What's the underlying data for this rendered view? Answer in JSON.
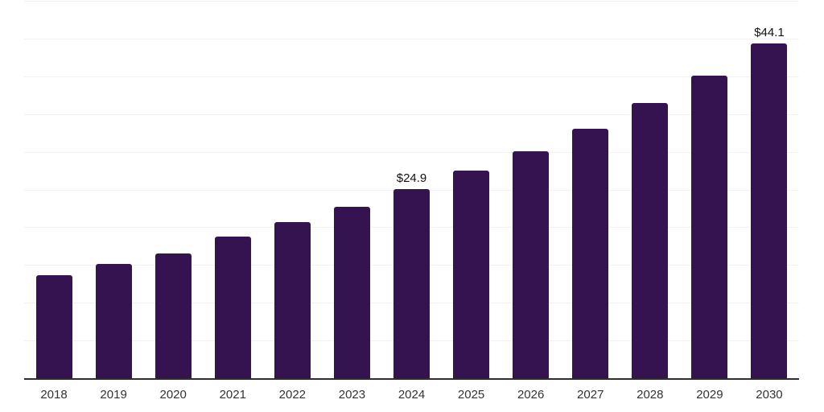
{
  "chart_data": {
    "type": "bar",
    "title": "",
    "xlabel": "",
    "ylabel": "",
    "categories": [
      "2018",
      "2019",
      "2020",
      "2021",
      "2022",
      "2023",
      "2024",
      "2025",
      "2026",
      "2027",
      "2028",
      "2029",
      "2030"
    ],
    "values": [
      13.6,
      15.0,
      16.4,
      18.7,
      20.6,
      22.6,
      24.9,
      27.3,
      29.9,
      32.9,
      36.2,
      39.8,
      44.1
    ],
    "value_labels": {
      "2024": "$24.9",
      "2030": "$44.1"
    },
    "ylim": [
      0,
      50
    ],
    "gridline_interval": 5,
    "gridlines_shown": 10,
    "legend": "none",
    "grid": "horizontal"
  },
  "colors": {
    "bar": "#351250",
    "gridline": "#f2f2f2",
    "axis_line": "#2e2e2e",
    "tick_label": "#333333",
    "value_label": "#111111",
    "background": "#ffffff"
  }
}
